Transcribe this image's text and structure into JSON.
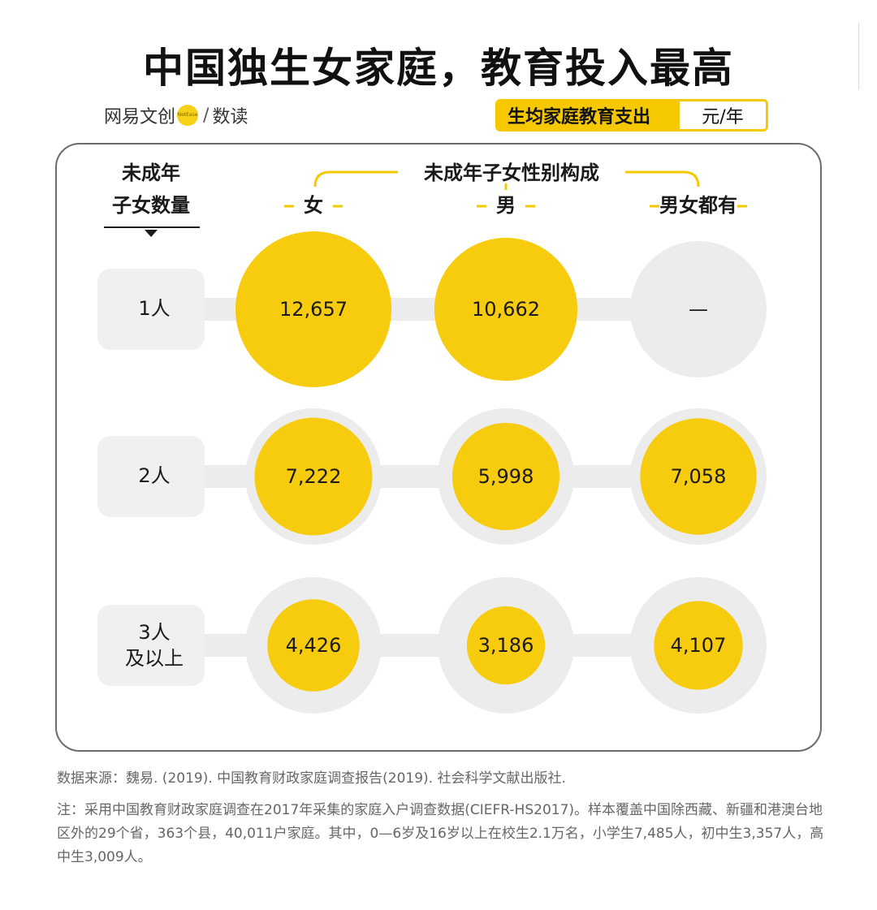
{
  "title": "中国独生女家庭，教育投入最高",
  "brand": {
    "left": "网易文创",
    "dot": "NetEase",
    "slash": "/",
    "right": "数读"
  },
  "unit": {
    "label": "生均家庭教育支出",
    "value": "元/年"
  },
  "colors": {
    "accent": "#f5c800",
    "bubble": "#f7cc0e",
    "halo": "#ececec",
    "pill": "#f0f0f0"
  },
  "chart_data": {
    "type": "bubble-table",
    "row_header": [
      "未成年",
      "子女数量"
    ],
    "column_group_label": "未成年子女性别构成",
    "columns": [
      "女",
      "男",
      "男女都有"
    ],
    "rows": [
      {
        "label": [
          "1人"
        ],
        "values": [
          12657,
          10662,
          null
        ],
        "display": [
          "12,657",
          "10,662",
          "—"
        ]
      },
      {
        "label": [
          "2人"
        ],
        "values": [
          7222,
          5998,
          7058
        ],
        "display": [
          "7,222",
          "5,998",
          "7,058"
        ]
      },
      {
        "label": [
          "3人",
          "及以上"
        ],
        "values": [
          4426,
          3186,
          4107
        ],
        "display": [
          "4,426",
          "3,186",
          "4,107"
        ]
      }
    ]
  },
  "source": "数据来源：魏易. (2019). 中国教育财政家庭调查报告(2019). 社会科学文献出版社.",
  "note": "注：采用中国教育财政家庭调查在2017年采集的家庭入户调查数据(CIEFR-HS2017)。样本覆盖中国除西藏、新疆和港澳台地区外的29个省，363个县，40,011户家庭。其中，0—6岁及16岁以上在校生2.1万名，小学生7,485人，初中生3,357人，高中生3,009人。"
}
